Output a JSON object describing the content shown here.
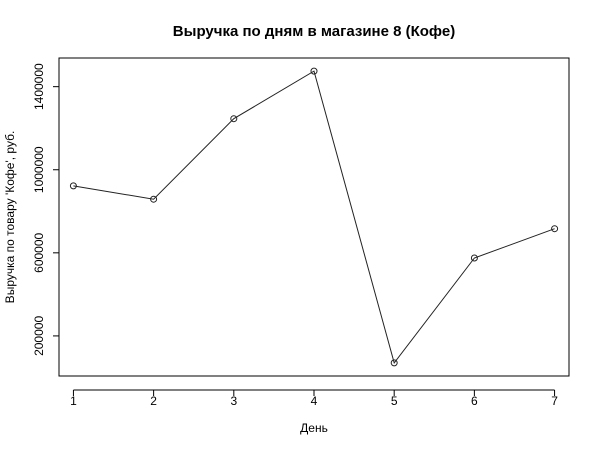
{
  "chart_data": {
    "type": "line",
    "title": "Выручка по дням в магазине 8 (Кофе)",
    "xlabel": "День",
    "ylabel": "Выручка по товару 'Кофе', руб.",
    "x": [
      1,
      2,
      3,
      4,
      5,
      6,
      7
    ],
    "values": [
      922000,
      858000,
      1246000,
      1475000,
      70000,
      575000,
      716000
    ],
    "xlim": [
      0.82,
      7.18
    ],
    "ylim": [
      7000,
      1538000
    ],
    "x_ticks": [
      1,
      2,
      3,
      4,
      5,
      6,
      7
    ],
    "x_tick_labels": [
      "1",
      "2",
      "3",
      "4",
      "5",
      "6",
      "7"
    ],
    "y_ticks": [
      200000,
      600000,
      1000000,
      1400000
    ],
    "y_tick_labels": [
      "200000",
      "600000",
      "1000000",
      "1400000"
    ],
    "grid": false,
    "marker": "open-circle",
    "colors": {
      "line": "#222222",
      "frame": "#000000"
    }
  }
}
